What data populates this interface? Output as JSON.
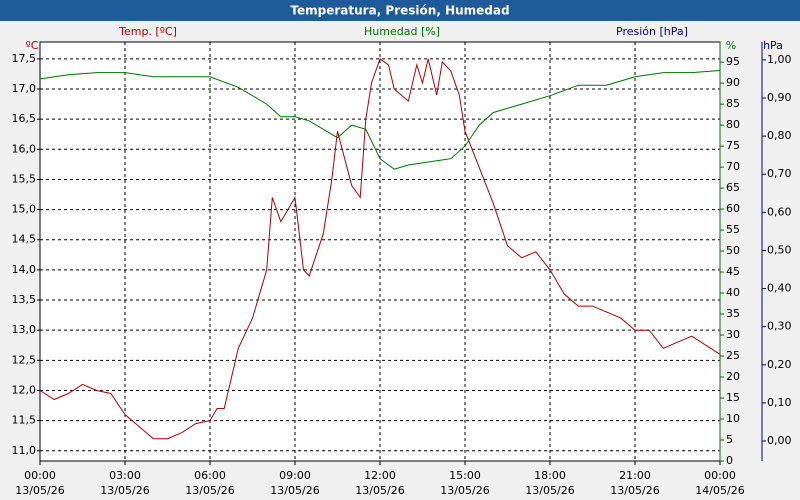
{
  "chart_data": {
    "type": "line",
    "title": "Temperatura, Presión, Humedad",
    "xlim": [
      0,
      24
    ],
    "xticks": [
      {
        "value": 0,
        "label": "00:00"
      },
      {
        "value": 3,
        "label": "03:00"
      },
      {
        "value": 6,
        "label": "06:00"
      },
      {
        "value": 9,
        "label": "09:00"
      },
      {
        "value": 12,
        "label": "12:00"
      },
      {
        "value": 15,
        "label": "15:00"
      },
      {
        "value": 18,
        "label": "18:00"
      },
      {
        "value": 21,
        "label": "21:00"
      },
      {
        "value": 24,
        "label": "00:00"
      }
    ],
    "xtick_dates": [
      "13/05/26",
      "13/05/26",
      "13/05/26",
      "13/05/26",
      "13/05/26",
      "13/05/26",
      "13/05/26",
      "13/05/26",
      "14/05/26"
    ],
    "ylabel": "Temp. [ºC]",
    "yunit": "ºC",
    "ylim": [
      10.83,
      17.78
    ],
    "yticks": [
      {
        "value": 11.0,
        "label": "11,0"
      },
      {
        "value": 11.5,
        "label": "11,5"
      },
      {
        "value": 12.0,
        "label": "12,0"
      },
      {
        "value": 12.5,
        "label": "12,5"
      },
      {
        "value": 13.0,
        "label": "13,0"
      },
      {
        "value": 13.5,
        "label": "13,5"
      },
      {
        "value": 14.0,
        "label": "14,0"
      },
      {
        "value": 14.5,
        "label": "14,5"
      },
      {
        "value": 15.0,
        "label": "15,0"
      },
      {
        "value": 15.5,
        "label": "15,5"
      },
      {
        "value": 16.0,
        "label": "16,0"
      },
      {
        "value": 16.5,
        "label": "16,5"
      },
      {
        "value": 17.0,
        "label": "17,0"
      },
      {
        "value": 17.5,
        "label": "17,5"
      }
    ],
    "y2label": "Humedad [%]",
    "y2unit": "%",
    "y2lim": [
      0,
      99.8
    ],
    "y2ticks": [
      0,
      5,
      10,
      15,
      20,
      25,
      30,
      35,
      40,
      45,
      50,
      55,
      60,
      65,
      70,
      75,
      80,
      85,
      90,
      95
    ],
    "y3label": "Presión [hPa]",
    "y3unit": "hPa",
    "y3lim": [
      -0.0525,
      1.047
    ],
    "y3ticks": [
      {
        "value": 0,
        "label": "0,00"
      },
      {
        "value": 0.1,
        "label": "0,10"
      },
      {
        "value": 0.2,
        "label": "0,20"
      },
      {
        "value": 0.3,
        "label": "0,30"
      },
      {
        "value": 0.4,
        "label": "0,40"
      },
      {
        "value": 0.5,
        "label": "0,50"
      },
      {
        "value": 0.6,
        "label": "0,60"
      },
      {
        "value": 0.7,
        "label": "0,70"
      },
      {
        "value": 0.8,
        "label": "0,80"
      },
      {
        "value": 0.9,
        "label": "0,90"
      },
      {
        "value": 1.0,
        "label": "1,00"
      }
    ],
    "grid": true,
    "series": [
      {
        "name": "Temp. [ºC]",
        "color": "#b00000",
        "axis": "y",
        "x": [
          0,
          0.5,
          1,
          1.5,
          2,
          2.5,
          3,
          3.5,
          4,
          4.5,
          5,
          5.5,
          6,
          6.25,
          6.5,
          7,
          7.5,
          8,
          8.2,
          8.5,
          9,
          9.3,
          9.5,
          10,
          10.3,
          10.5,
          11,
          11.3,
          11.5,
          11.7,
          12,
          12.3,
          12.5,
          13,
          13.3,
          13.5,
          13.7,
          14,
          14.2,
          14.5,
          14.8,
          15,
          15.5,
          16,
          16.5,
          17,
          17.5,
          18,
          18.5,
          19,
          19.5,
          20,
          20.5,
          21,
          21.5,
          22,
          22.5,
          23,
          23.5,
          24
        ],
        "values": [
          12.0,
          11.85,
          11.95,
          12.1,
          12.0,
          11.95,
          11.6,
          11.4,
          11.2,
          11.2,
          11.3,
          11.45,
          11.5,
          11.7,
          11.7,
          12.7,
          13.2,
          14.0,
          15.2,
          14.8,
          15.2,
          14.0,
          13.9,
          14.6,
          15.5,
          16.3,
          15.4,
          15.2,
          16.5,
          17.1,
          17.5,
          17.4,
          17.0,
          16.8,
          17.4,
          17.1,
          17.5,
          16.9,
          17.45,
          17.3,
          16.9,
          16.3,
          15.7,
          15.1,
          14.4,
          14.2,
          14.3,
          14.0,
          13.6,
          13.4,
          13.4,
          13.3,
          13.2,
          13.0,
          13.0,
          12.7,
          12.8,
          12.9,
          12.75,
          12.6
        ]
      },
      {
        "name": "Humedad [%]",
        "color": "#007000",
        "axis": "y2",
        "x": [
          0,
          1,
          2,
          3,
          4,
          5,
          6,
          7,
          8,
          8.5,
          9,
          9.5,
          10,
          10.5,
          11,
          11.5,
          12,
          12.5,
          13,
          13.5,
          14,
          14.5,
          15,
          15.5,
          16,
          17,
          18,
          19,
          20,
          21,
          22,
          23,
          24
        ],
        "values": [
          91,
          92,
          92.5,
          92.5,
          91.5,
          91.5,
          91.5,
          89,
          85,
          82,
          82,
          81,
          79,
          77,
          80,
          79,
          72,
          69.5,
          70.5,
          71,
          71.5,
          72,
          75,
          80,
          83,
          85,
          87,
          89.5,
          89.5,
          91.5,
          92.5,
          92.5,
          93
        ]
      }
    ]
  }
}
